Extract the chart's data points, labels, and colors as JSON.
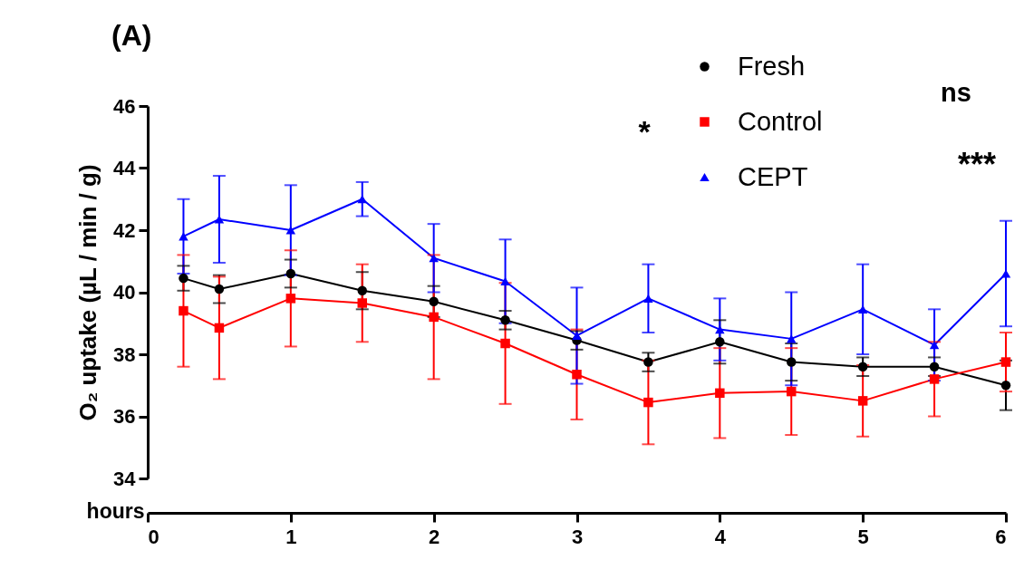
{
  "chart_data": {
    "type": "line",
    "title": "(A)",
    "xlabel": "hours",
    "ylabel": "O₂ uptake (µL / min / g)",
    "x": [
      0.25,
      0.5,
      1,
      1.5,
      2,
      2.5,
      3,
      3.5,
      4,
      4.5,
      5,
      5.5,
      6
    ],
    "series": [
      {
        "name": "Fresh",
        "color": "#000000",
        "marker": "circle",
        "values": [
          40.45,
          40.1,
          40.6,
          40.05,
          39.7,
          39.1,
          38.45,
          37.75,
          38.4,
          37.75,
          37.6,
          37.6,
          37.0
        ],
        "errors": [
          0.4,
          0.45,
          0.45,
          0.6,
          0.5,
          0.3,
          0.3,
          0.3,
          0.7,
          0.6,
          0.3,
          0.3,
          0.8
        ]
      },
      {
        "name": "Control",
        "color": "#ff0000",
        "marker": "square",
        "values": [
          39.4,
          38.85,
          39.8,
          39.65,
          39.2,
          38.35,
          37.35,
          36.45,
          36.75,
          36.8,
          36.5,
          37.2,
          37.75
        ],
        "errors": [
          1.8,
          1.65,
          1.55,
          1.25,
          2.0,
          1.95,
          1.45,
          1.35,
          1.45,
          1.4,
          1.15,
          1.2,
          0.95
        ]
      },
      {
        "name": "CEPT",
        "color": "#0000ff",
        "marker": "triangle",
        "values": [
          41.8,
          42.35,
          42.0,
          43.0,
          41.1,
          40.35,
          38.6,
          39.8,
          38.8,
          38.5,
          39.45,
          38.3,
          40.6
        ],
        "errors": [
          1.2,
          1.4,
          1.45,
          0.55,
          1.1,
          1.35,
          1.55,
          1.1,
          1.0,
          1.5,
          1.45,
          1.15,
          1.7
        ]
      }
    ],
    "xlim": [
      0,
      6
    ],
    "xticks": [
      0,
      1,
      2,
      3,
      4,
      5,
      6
    ],
    "ylim": [
      34,
      46
    ],
    "yticks": [
      34,
      36,
      38,
      40,
      42,
      44,
      46
    ],
    "legend": "top right",
    "grid": false,
    "annotations": [
      "*",
      "ns",
      "***"
    ]
  }
}
